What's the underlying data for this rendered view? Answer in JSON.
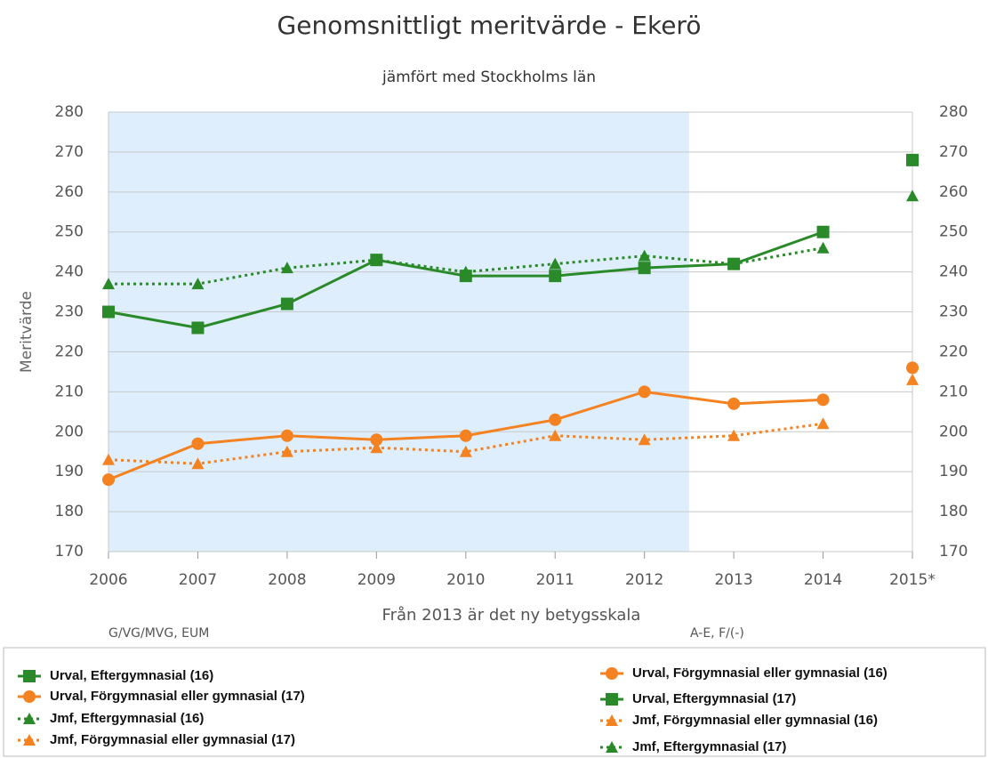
{
  "chart_data": {
    "type": "line",
    "title": "Genomsnittligt meritvärde - Ekerö",
    "subtitle": "jämfört med Stockholms län",
    "y_axis_label": "Meritvärde",
    "x_axis_label": "Från 2013 är det ny betygsskala",
    "annotations": [
      "G/VG/MVG, EUM",
      "A-E, F/(-)"
    ],
    "categories": [
      "2006",
      "2007",
      "2008",
      "2009",
      "2010",
      "2011",
      "2012",
      "2013",
      "2014",
      "2015*"
    ],
    "ylim": [
      170,
      280
    ],
    "yticks": [
      170,
      180,
      190,
      200,
      210,
      220,
      230,
      240,
      250,
      260,
      270,
      280
    ],
    "y2lim": [
      170,
      280
    ],
    "y2ticks": [
      170,
      180,
      190,
      200,
      210,
      220,
      230,
      240,
      250,
      260,
      270,
      280
    ],
    "grid": true,
    "series": [
      {
        "name": "Urval, Eftergymnasial (16)",
        "color": "#2a8a2a",
        "marker": "square",
        "dashed": false,
        "values": [
          230,
          226,
          232,
          243,
          239,
          239,
          241,
          242,
          250,
          null
        ]
      },
      {
        "name": "Urval, Förgymnasial eller gymnasial (17)",
        "color": "#f58220",
        "marker": "circle",
        "dashed": false,
        "values": [
          188,
          197,
          199,
          198,
          199,
          203,
          210,
          207,
          208,
          null
        ]
      },
      {
        "name": "Jmf, Eftergymnasial (16)",
        "color": "#2a8a2a",
        "marker": "triangle",
        "dashed": true,
        "values": [
          237,
          237,
          241,
          243,
          240,
          242,
          244,
          242,
          246,
          null
        ]
      },
      {
        "name": "Jmf, Förgymnasial eller gymnasial (17)",
        "color": "#f58220",
        "marker": "triangle",
        "dashed": true,
        "values": [
          193,
          192,
          195,
          196,
          195,
          199,
          198,
          199,
          202,
          null
        ]
      },
      {
        "name": "Urval, Förgymnasial eller gymnasial (16)",
        "color": "#f58220",
        "marker": "circle",
        "dashed": false,
        "values": [
          null,
          null,
          null,
          null,
          null,
          null,
          null,
          null,
          null,
          216
        ]
      },
      {
        "name": "Urval, Eftergymnasial (17)",
        "color": "#2a8a2a",
        "marker": "square",
        "dashed": false,
        "values": [
          null,
          null,
          null,
          null,
          null,
          null,
          null,
          null,
          null,
          268
        ]
      },
      {
        "name": "Jmf, Förgymnasial eller gymnasial (16)",
        "color": "#f58220",
        "marker": "triangle",
        "dashed": true,
        "values": [
          null,
          null,
          null,
          null,
          null,
          null,
          null,
          null,
          null,
          213
        ]
      },
      {
        "name": "Jmf, Eftergymnasial (17)",
        "color": "#2a8a2a",
        "marker": "triangle",
        "dashed": true,
        "values": [
          null,
          null,
          null,
          null,
          null,
          null,
          null,
          null,
          null,
          259
        ]
      }
    ]
  }
}
